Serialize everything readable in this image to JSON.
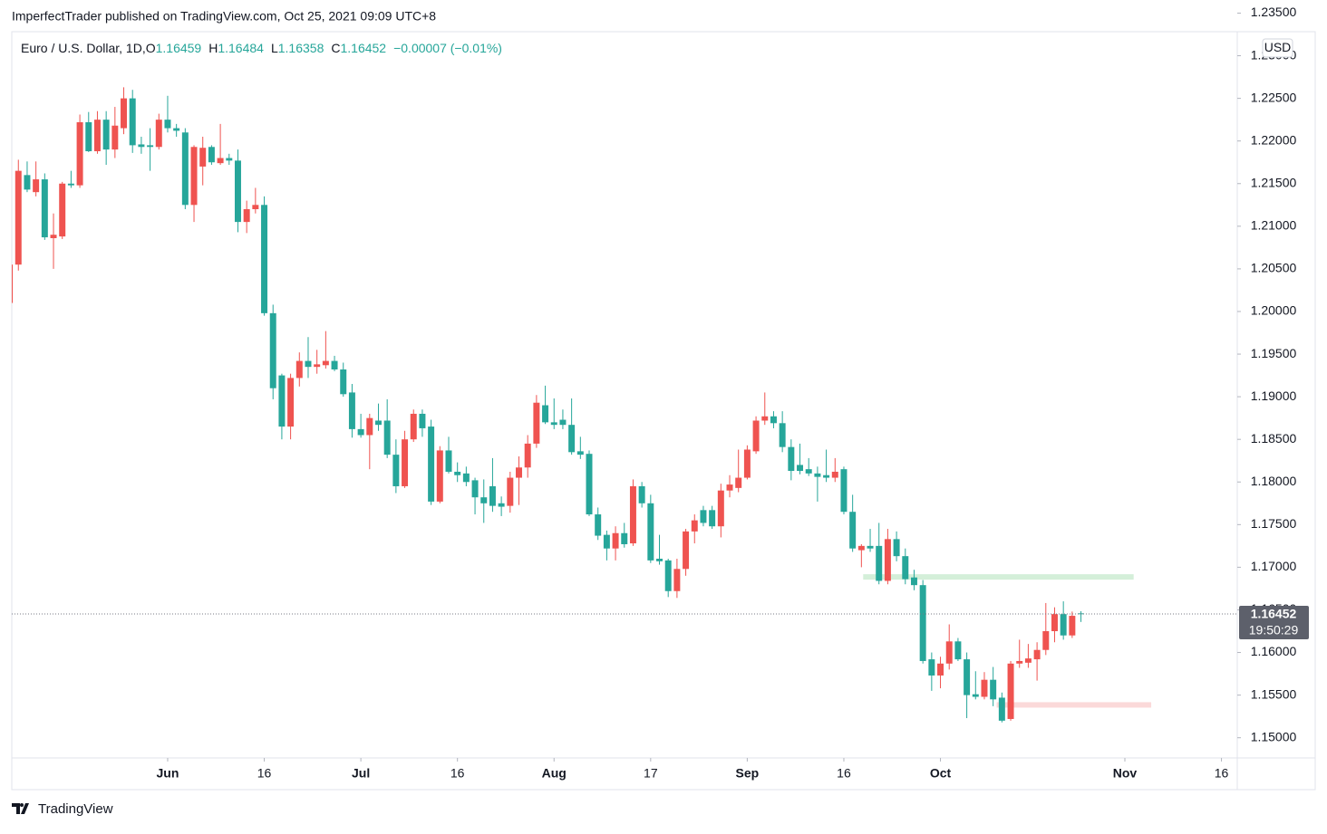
{
  "header": "ImperfectTrader published on TradingView.com, Oct 25, 2021 09:09 UTC+8",
  "footer": "TradingView",
  "chart_data": {
    "type": "candlestick",
    "title": "Euro / U.S. Dollar, 1D,",
    "ohlc_labels": [
      "O",
      "H",
      "L",
      "C"
    ],
    "change": "−0.00007 (−0.01%)",
    "currency": "USD",
    "countdown": "19:50:29",
    "up_color": "#ef5350",
    "down_color": "#26a69a",
    "xlim": [
      0.25,
      139.8
    ],
    "xticks": [
      {
        "value": 18,
        "label": "Jun"
      },
      {
        "value": 29,
        "label": "16"
      },
      {
        "value": 40,
        "label": "Jul"
      },
      {
        "value": 51,
        "label": "16"
      },
      {
        "value": 62,
        "label": "Aug"
      },
      {
        "value": 73,
        "label": "17"
      },
      {
        "value": 84,
        "label": "Sep"
      },
      {
        "value": 95,
        "label": "16"
      },
      {
        "value": 106,
        "label": "Oct"
      },
      {
        "value": 127,
        "label": "Nov"
      },
      {
        "value": 138,
        "label": "16"
      }
    ],
    "ylim": [
      1.14763,
      1.23282
    ],
    "yticks": [
      {
        "value": 1.235,
        "label": "1.23500"
      },
      {
        "value": 1.23,
        "label": "1.23000"
      },
      {
        "value": 1.225,
        "label": "1.22500"
      },
      {
        "value": 1.22,
        "label": "1.22000"
      },
      {
        "value": 1.215,
        "label": "1.21500"
      },
      {
        "value": 1.21,
        "label": "1.21000"
      },
      {
        "value": 1.205,
        "label": "1.20500"
      },
      {
        "value": 1.2,
        "label": "1.20000"
      },
      {
        "value": 1.195,
        "label": "1.19500"
      },
      {
        "value": 1.19,
        "label": "1.19000"
      },
      {
        "value": 1.185,
        "label": "1.18500"
      },
      {
        "value": 1.18,
        "label": "1.18000"
      },
      {
        "value": 1.175,
        "label": "1.17500"
      },
      {
        "value": 1.17,
        "label": "1.17000"
      },
      {
        "value": 1.165,
        "label": "1.16500"
      },
      {
        "value": 1.16,
        "label": "1.16000"
      },
      {
        "value": 1.155,
        "label": "1.15500"
      },
      {
        "value": 1.15,
        "label": "1.15000"
      }
    ],
    "zones": [
      {
        "from": 97.2,
        "to": 128.0,
        "top": 1.16918,
        "bottom": 1.16884,
        "color": "#d4efd9"
      },
      {
        "from": 112.4,
        "to": 130.0,
        "top": 1.15417,
        "bottom": 1.15383,
        "color": "#fbd9d9"
      }
    ],
    "candles": [
      {
        "open": 1.201,
        "high": 1.2065,
        "low": 1.2004,
        "close": 1.2055
      },
      {
        "open": 1.2055,
        "high": 1.2178,
        "low": 1.2048,
        "close": 1.2165
      },
      {
        "open": 1.216,
        "high": 1.2176,
        "low": 1.214,
        "close": 1.2143
      },
      {
        "open": 1.214,
        "high": 1.2176,
        "low": 1.2135,
        "close": 1.2155
      },
      {
        "open": 1.2155,
        "high": 1.2162,
        "low": 1.2084,
        "close": 1.2087
      },
      {
        "open": 1.2086,
        "high": 1.2115,
        "low": 1.205,
        "close": 1.209
      },
      {
        "open": 1.2088,
        "high": 1.2152,
        "low": 1.2085,
        "close": 1.215
      },
      {
        "open": 1.215,
        "high": 1.2165,
        "low": 1.2145,
        "close": 1.2148
      },
      {
        "open": 1.2148,
        "high": 1.2231,
        "low": 1.2145,
        "close": 1.2222
      },
      {
        "open": 1.2222,
        "high": 1.2234,
        "low": 1.2187,
        "close": 1.2188
      },
      {
        "open": 1.2188,
        "high": 1.2235,
        "low": 1.2185,
        "close": 1.2225
      },
      {
        "open": 1.2225,
        "high": 1.2235,
        "low": 1.2172,
        "close": 1.219
      },
      {
        "open": 1.219,
        "high": 1.224,
        "low": 1.218,
        "close": 1.2218
      },
      {
        "open": 1.2215,
        "high": 1.2263,
        "low": 1.2208,
        "close": 1.225
      },
      {
        "open": 1.225,
        "high": 1.226,
        "low": 1.2186,
        "close": 1.2195
      },
      {
        "open": 1.2196,
        "high": 1.2205,
        "low": 1.2185,
        "close": 1.2193
      },
      {
        "open": 1.2195,
        "high": 1.2215,
        "low": 1.2165,
        "close": 1.2193
      },
      {
        "open": 1.2193,
        "high": 1.2232,
        "low": 1.219,
        "close": 1.2225
      },
      {
        "open": 1.2225,
        "high": 1.2253,
        "low": 1.221,
        "close": 1.2215
      },
      {
        "open": 1.2215,
        "high": 1.222,
        "low": 1.2205,
        "close": 1.2212
      },
      {
        "open": 1.221,
        "high": 1.2215,
        "low": 1.212,
        "close": 1.2125
      },
      {
        "open": 1.2125,
        "high": 1.2195,
        "low": 1.2105,
        "close": 1.2193
      },
      {
        "open": 1.217,
        "high": 1.2205,
        "low": 1.2148,
        "close": 1.2192
      },
      {
        "open": 1.2193,
        "high": 1.2195,
        "low": 1.2172,
        "close": 1.2175
      },
      {
        "open": 1.2174,
        "high": 1.222,
        "low": 1.2172,
        "close": 1.218
      },
      {
        "open": 1.218,
        "high": 1.2185,
        "low": 1.2172,
        "close": 1.2177
      },
      {
        "open": 1.2177,
        "high": 1.219,
        "low": 1.2093,
        "close": 1.2105
      },
      {
        "open": 1.2105,
        "high": 1.213,
        "low": 1.2092,
        "close": 1.212
      },
      {
        "open": 1.212,
        "high": 1.2145,
        "low": 1.2115,
        "close": 1.2125
      },
      {
        "open": 1.2125,
        "high": 1.2135,
        "low": 1.1995,
        "close": 1.1998
      },
      {
        "open": 1.1998,
        "high": 1.2008,
        "low": 1.1897,
        "close": 1.191
      },
      {
        "open": 1.1925,
        "high": 1.1927,
        "low": 1.185,
        "close": 1.1865
      },
      {
        "open": 1.1865,
        "high": 1.1927,
        "low": 1.185,
        "close": 1.1922
      },
      {
        "open": 1.1922,
        "high": 1.1952,
        "low": 1.1912,
        "close": 1.1942
      },
      {
        "open": 1.1942,
        "high": 1.197,
        "low": 1.1922,
        "close": 1.1935
      },
      {
        "open": 1.1935,
        "high": 1.1955,
        "low": 1.1927,
        "close": 1.1938
      },
      {
        "open": 1.1937,
        "high": 1.1977,
        "low": 1.1933,
        "close": 1.1942
      },
      {
        "open": 1.1942,
        "high": 1.1948,
        "low": 1.193,
        "close": 1.1932
      },
      {
        "open": 1.1932,
        "high": 1.194,
        "low": 1.19,
        "close": 1.1903
      },
      {
        "open": 1.1905,
        "high": 1.1915,
        "low": 1.1852,
        "close": 1.1862
      },
      {
        "open": 1.1862,
        "high": 1.188,
        "low": 1.1852,
        "close": 1.1855
      },
      {
        "open": 1.1855,
        "high": 1.188,
        "low": 1.1815,
        "close": 1.1875
      },
      {
        "open": 1.1872,
        "high": 1.1892,
        "low": 1.186,
        "close": 1.1867
      },
      {
        "open": 1.1872,
        "high": 1.1897,
        "low": 1.1828,
        "close": 1.1832
      },
      {
        "open": 1.1832,
        "high": 1.185,
        "low": 1.1787,
        "close": 1.1795
      },
      {
        "open": 1.1795,
        "high": 1.186,
        "low": 1.1793,
        "close": 1.185
      },
      {
        "open": 1.185,
        "high": 1.1885,
        "low": 1.1847,
        "close": 1.188
      },
      {
        "open": 1.188,
        "high": 1.1885,
        "low": 1.1853,
        "close": 1.1863
      },
      {
        "open": 1.1865,
        "high": 1.1873,
        "low": 1.1773,
        "close": 1.1777
      },
      {
        "open": 1.1777,
        "high": 1.1842,
        "low": 1.1775,
        "close": 1.1837
      },
      {
        "open": 1.1837,
        "high": 1.1853,
        "low": 1.181,
        "close": 1.1812
      },
      {
        "open": 1.1812,
        "high": 1.1823,
        "low": 1.18,
        "close": 1.1808
      },
      {
        "open": 1.181,
        "high": 1.1818,
        "low": 1.1795,
        "close": 1.18
      },
      {
        "open": 1.1802,
        "high": 1.1805,
        "low": 1.1762,
        "close": 1.1782
      },
      {
        "open": 1.1782,
        "high": 1.1803,
        "low": 1.1752,
        "close": 1.1775
      },
      {
        "open": 1.1795,
        "high": 1.1828,
        "low": 1.1765,
        "close": 1.1772
      },
      {
        "open": 1.1775,
        "high": 1.1783,
        "low": 1.176,
        "close": 1.1771
      },
      {
        "open": 1.1772,
        "high": 1.1812,
        "low": 1.1764,
        "close": 1.1805
      },
      {
        "open": 1.1805,
        "high": 1.183,
        "low": 1.1773,
        "close": 1.1817
      },
      {
        "open": 1.1817,
        "high": 1.1855,
        "low": 1.1805,
        "close": 1.1845
      },
      {
        "open": 1.1845,
        "high": 1.1902,
        "low": 1.184,
        "close": 1.1893
      },
      {
        "open": 1.189,
        "high": 1.1913,
        "low": 1.1868,
        "close": 1.187
      },
      {
        "open": 1.187,
        "high": 1.1898,
        "low": 1.1862,
        "close": 1.1867
      },
      {
        "open": 1.1873,
        "high": 1.1885,
        "low": 1.1862,
        "close": 1.1867
      },
      {
        "open": 1.1867,
        "high": 1.1898,
        "low": 1.1832,
        "close": 1.1835
      },
      {
        "open": 1.1836,
        "high": 1.1853,
        "low": 1.1827,
        "close": 1.1832
      },
      {
        "open": 1.1833,
        "high": 1.1837,
        "low": 1.176,
        "close": 1.1762
      },
      {
        "open": 1.1762,
        "high": 1.177,
        "low": 1.1732,
        "close": 1.1737
      },
      {
        "open": 1.1738,
        "high": 1.1743,
        "low": 1.1708,
        "close": 1.1722
      },
      {
        "open": 1.1722,
        "high": 1.1748,
        "low": 1.1708,
        "close": 1.174
      },
      {
        "open": 1.174,
        "high": 1.1752,
        "low": 1.1723,
        "close": 1.1727
      },
      {
        "open": 1.1728,
        "high": 1.1803,
        "low": 1.1725,
        "close": 1.1795
      },
      {
        "open": 1.1795,
        "high": 1.18,
        "low": 1.177,
        "close": 1.1775
      },
      {
        "open": 1.1775,
        "high": 1.1785,
        "low": 1.1705,
        "close": 1.1708
      },
      {
        "open": 1.171,
        "high": 1.1738,
        "low": 1.1703,
        "close": 1.1707
      },
      {
        "open": 1.1708,
        "high": 1.171,
        "low": 1.1665,
        "close": 1.1672
      },
      {
        "open": 1.1672,
        "high": 1.171,
        "low": 1.1664,
        "close": 1.1698
      },
      {
        "open": 1.1698,
        "high": 1.1745,
        "low": 1.169,
        "close": 1.1742
      },
      {
        "open": 1.1742,
        "high": 1.1762,
        "low": 1.1728,
        "close": 1.1755
      },
      {
        "open": 1.1767,
        "high": 1.1772,
        "low": 1.1748,
        "close": 1.1752
      },
      {
        "open": 1.1767,
        "high": 1.1772,
        "low": 1.1745,
        "close": 1.1748
      },
      {
        "open": 1.1748,
        "high": 1.1798,
        "low": 1.1735,
        "close": 1.179
      },
      {
        "open": 1.179,
        "high": 1.1808,
        "low": 1.1782,
        "close": 1.1797
      },
      {
        "open": 1.1793,
        "high": 1.1838,
        "low": 1.1788,
        "close": 1.1805
      },
      {
        "open": 1.1805,
        "high": 1.1843,
        "low": 1.1803,
        "close": 1.1838
      },
      {
        "open": 1.1836,
        "high": 1.1877,
        "low": 1.1833,
        "close": 1.1872
      },
      {
        "open": 1.1872,
        "high": 1.1905,
        "low": 1.1867,
        "close": 1.1877
      },
      {
        "open": 1.1877,
        "high": 1.1883,
        "low": 1.1863,
        "close": 1.1869
      },
      {
        "open": 1.1869,
        "high": 1.1883,
        "low": 1.1835,
        "close": 1.1841
      },
      {
        "open": 1.1841,
        "high": 1.185,
        "low": 1.1802,
        "close": 1.1813
      },
      {
        "open": 1.182,
        "high": 1.1845,
        "low": 1.1809,
        "close": 1.1813
      },
      {
        "open": 1.1815,
        "high": 1.1828,
        "low": 1.1807,
        "close": 1.181
      },
      {
        "open": 1.181,
        "high": 1.1818,
        "low": 1.1777,
        "close": 1.1806
      },
      {
        "open": 1.1808,
        "high": 1.1838,
        "low": 1.18,
        "close": 1.1805
      },
      {
        "open": 1.1805,
        "high": 1.1828,
        "low": 1.18,
        "close": 1.1812
      },
      {
        "open": 1.1815,
        "high": 1.1818,
        "low": 1.1762,
        "close": 1.1765
      },
      {
        "open": 1.1765,
        "high": 1.1785,
        "low": 1.1718,
        "close": 1.1722
      },
      {
        "open": 1.172,
        "high": 1.1727,
        "low": 1.17,
        "close": 1.1725
      },
      {
        "open": 1.1725,
        "high": 1.1745,
        "low": 1.1718,
        "close": 1.1722
      },
      {
        "open": 1.1725,
        "high": 1.1752,
        "low": 1.168,
        "close": 1.1684
      },
      {
        "open": 1.1684,
        "high": 1.1745,
        "low": 1.168,
        "close": 1.1733
      },
      {
        "open": 1.1733,
        "high": 1.1742,
        "low": 1.1707,
        "close": 1.1713
      },
      {
        "open": 1.1713,
        "high": 1.1722,
        "low": 1.168,
        "close": 1.1686
      },
      {
        "open": 1.1688,
        "high": 1.1697,
        "low": 1.1673,
        "close": 1.1679
      },
      {
        "open": 1.1679,
        "high": 1.1685,
        "low": 1.1587,
        "close": 1.159
      },
      {
        "open": 1.1592,
        "high": 1.16,
        "low": 1.1555,
        "close": 1.1573
      },
      {
        "open": 1.1573,
        "high": 1.1595,
        "low": 1.1558,
        "close": 1.1587
      },
      {
        "open": 1.1587,
        "high": 1.1633,
        "low": 1.158,
        "close": 1.1613
      },
      {
        "open": 1.1613,
        "high": 1.1617,
        "low": 1.159,
        "close": 1.1592
      },
      {
        "open": 1.1592,
        "high": 1.16,
        "low": 1.1523,
        "close": 1.155
      },
      {
        "open": 1.1551,
        "high": 1.1578,
        "low": 1.1545,
        "close": 1.1548
      },
      {
        "open": 1.1548,
        "high": 1.1577,
        "low": 1.1545,
        "close": 1.1568
      },
      {
        "open": 1.1568,
        "high": 1.1583,
        "low": 1.1537,
        "close": 1.1545
      },
      {
        "open": 1.1547,
        "high": 1.1553,
        "low": 1.1518,
        "close": 1.152
      },
      {
        "open": 1.1522,
        "high": 1.159,
        "low": 1.152,
        "close": 1.1587
      },
      {
        "open": 1.1587,
        "high": 1.1615,
        "low": 1.1582,
        "close": 1.159
      },
      {
        "open": 1.1588,
        "high": 1.161,
        "low": 1.1582,
        "close": 1.1593
      },
      {
        "open": 1.1592,
        "high": 1.1612,
        "low": 1.1567,
        "close": 1.1603
      },
      {
        "open": 1.1603,
        "high": 1.1658,
        "low": 1.1597,
        "close": 1.1625
      },
      {
        "open": 1.1625,
        "high": 1.1653,
        "low": 1.1612,
        "close": 1.1645
      },
      {
        "open": 1.1645,
        "high": 1.166,
        "low": 1.1615,
        "close": 1.162
      },
      {
        "open": 1.162,
        "high": 1.1648,
        "low": 1.1617,
        "close": 1.1643
      },
      {
        "open": 1.16459,
        "high": 1.16484,
        "low": 1.16358,
        "close": 1.16452
      }
    ]
  }
}
